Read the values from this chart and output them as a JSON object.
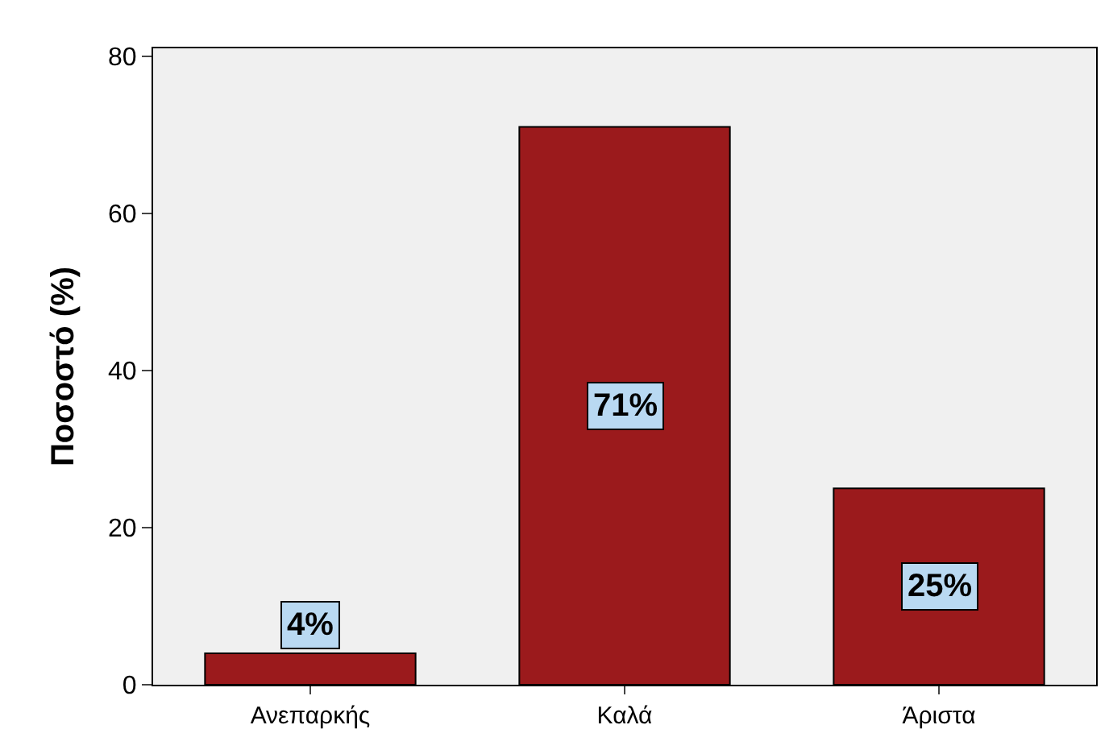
{
  "chart_data": {
    "type": "bar",
    "ylabel": "Ποσοστό (%)",
    "categories": [
      "Ανεπαρκής",
      "Καλά",
      "Άριστα"
    ],
    "values": [
      4,
      71,
      25
    ],
    "value_labels": [
      "4%",
      "71%",
      "25%"
    ],
    "color": "#9b1a1c",
    "ylim": [
      0,
      81
    ],
    "yticks": [
      0,
      20,
      40,
      60,
      80
    ],
    "grid": false
  }
}
